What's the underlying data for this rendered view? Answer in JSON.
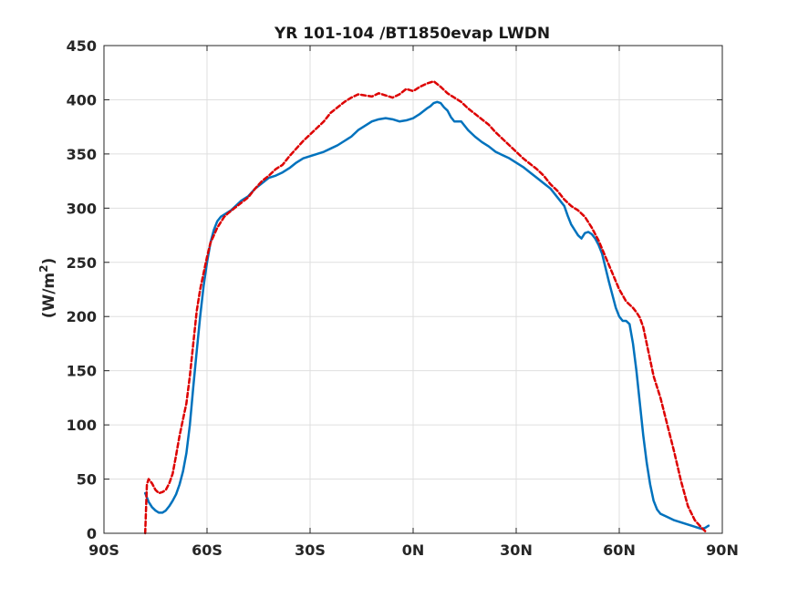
{
  "chart_data": {
    "type": "line",
    "title": "YR 101-104 /BT1850evap LWDN",
    "xlabel": "",
    "ylabel_main": "(W/m",
    "ylabel_sup": "2",
    "ylabel_close": ")",
    "xlim": [
      -90,
      90
    ],
    "ylim": [
      0,
      450
    ],
    "grid": true,
    "xticks": [
      {
        "value": -90,
        "label": "90S"
      },
      {
        "value": -60,
        "label": "60S"
      },
      {
        "value": -30,
        "label": "30S"
      },
      {
        "value": 0,
        "label": "0N"
      },
      {
        "value": 30,
        "label": "30N"
      },
      {
        "value": 60,
        "label": "60N"
      },
      {
        "value": 90,
        "label": "90N"
      }
    ],
    "yticks": [
      {
        "value": 0,
        "label": "0"
      },
      {
        "value": 50,
        "label": "50"
      },
      {
        "value": 100,
        "label": "100"
      },
      {
        "value": 150,
        "label": "150"
      },
      {
        "value": 200,
        "label": "200"
      },
      {
        "value": 250,
        "label": "250"
      },
      {
        "value": 300,
        "label": "300"
      },
      {
        "value": 350,
        "label": "350"
      },
      {
        "value": 400,
        "label": "400"
      },
      {
        "value": 450,
        "label": "450"
      }
    ],
    "series": [
      {
        "color": "#0072bd",
        "style": "solid",
        "x": [
          -78,
          -77,
          -76,
          -75,
          -74,
          -73,
          -72,
          -71,
          -70,
          -69,
          -68,
          -67,
          -66,
          -65,
          -64,
          -63,
          -62,
          -61,
          -60,
          -59,
          -58,
          -57,
          -56,
          -55,
          -54,
          -53,
          -52,
          -50,
          -48,
          -46,
          -44,
          -42,
          -40,
          -38,
          -36,
          -34,
          -32,
          -30,
          -28,
          -26,
          -24,
          -22,
          -20,
          -18,
          -16,
          -14,
          -12,
          -10,
          -8,
          -6,
          -4,
          -2,
          0,
          2,
          4,
          5,
          6,
          7,
          8,
          9,
          10,
          11,
          12,
          14,
          15,
          16,
          18,
          20,
          22,
          24,
          26,
          28,
          30,
          32,
          34,
          36,
          38,
          40,
          42,
          44,
          45,
          46,
          47,
          48,
          49,
          50,
          51,
          52,
          53,
          54,
          55,
          56,
          57,
          58,
          59,
          60,
          61,
          62,
          63,
          64,
          65,
          66,
          67,
          68,
          69,
          70,
          71,
          72,
          74,
          76,
          78,
          80,
          82,
          84,
          85,
          86
        ],
        "y": [
          37,
          29,
          24,
          21,
          19,
          19,
          21,
          25,
          30,
          36,
          45,
          57,
          74,
          100,
          135,
          168,
          200,
          228,
          250,
          268,
          280,
          288,
          292,
          294,
          296,
          298,
          301,
          307,
          311,
          318,
          323,
          328,
          330,
          333,
          337,
          342,
          346,
          348,
          350,
          352,
          355,
          358,
          362,
          366,
          372,
          376,
          380,
          382,
          383,
          382,
          380,
          381,
          383,
          387,
          392,
          394,
          397,
          398,
          397,
          393,
          390,
          384,
          380,
          380,
          376,
          372,
          366,
          361,
          357,
          352,
          349,
          346,
          342,
          338,
          333,
          328,
          323,
          318,
          310,
          302,
          293,
          285,
          280,
          275,
          272,
          277,
          278,
          276,
          272,
          266,
          258,
          245,
          232,
          220,
          208,
          200,
          196,
          196,
          193,
          175,
          150,
          120,
          90,
          65,
          45,
          30,
          22,
          18,
          15,
          12,
          10,
          8,
          6,
          4,
          5,
          7
        ]
      },
      {
        "color": "#dd0000",
        "style": "dashed",
        "x": [
          -78,
          -77.5,
          -77,
          -76,
          -75,
          -74,
          -73,
          -72,
          -71,
          -70,
          -69,
          -68,
          -67,
          -66,
          -65,
          -64,
          -63,
          -62,
          -61,
          -60,
          -59,
          -58,
          -57,
          -56,
          -55,
          -54,
          -52,
          -50,
          -48,
          -46,
          -44,
          -42,
          -40,
          -38,
          -36,
          -34,
          -32,
          -30,
          -28,
          -26,
          -24,
          -22,
          -20,
          -18,
          -16,
          -14,
          -12,
          -10,
          -8,
          -6,
          -4,
          -2,
          0,
          2,
          4,
          6,
          8,
          10,
          12,
          14,
          16,
          18,
          20,
          22,
          24,
          26,
          28,
          30,
          32,
          34,
          36,
          38,
          40,
          42,
          44,
          46,
          48,
          50,
          52,
          54,
          56,
          58,
          60,
          62,
          64,
          65,
          66,
          67,
          68,
          69,
          70,
          72,
          74,
          76,
          78,
          80,
          82,
          84,
          85
        ],
        "y": [
          0,
          45,
          50,
          46,
          40,
          37,
          38,
          40,
          46,
          55,
          72,
          90,
          105,
          120,
          145,
          175,
          205,
          225,
          240,
          255,
          268,
          275,
          282,
          287,
          292,
          295,
          300,
          305,
          310,
          318,
          325,
          330,
          336,
          340,
          348,
          355,
          362,
          368,
          374,
          380,
          388,
          393,
          398,
          402,
          405,
          404,
          403,
          406,
          404,
          402,
          405,
          410,
          408,
          412,
          415,
          417,
          412,
          406,
          402,
          398,
          392,
          387,
          382,
          377,
          370,
          364,
          358,
          352,
          346,
          341,
          336,
          330,
          322,
          316,
          308,
          302,
          298,
          292,
          282,
          270,
          255,
          240,
          225,
          214,
          208,
          204,
          199,
          190,
          175,
          160,
          145,
          125,
          100,
          75,
          48,
          25,
          12,
          5,
          2
        ]
      }
    ]
  }
}
